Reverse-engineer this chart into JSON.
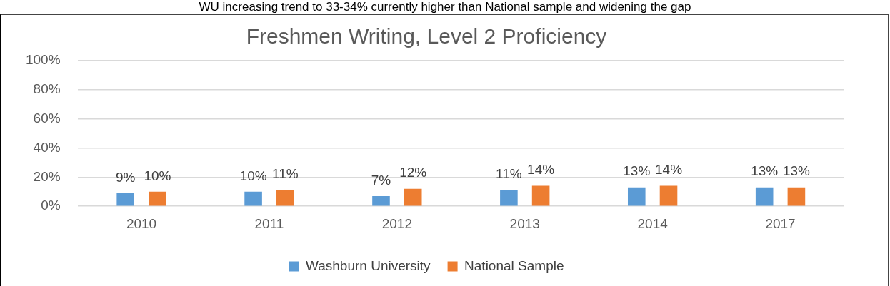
{
  "chart_data": {
    "type": "bar",
    "title": "Freshmen Writing, Level 2 Proficiency",
    "annotations": [
      "WU increasing trend to 33-34% currently higher than National sample and widening the gap"
    ],
    "categories": [
      "2010",
      "2011",
      "2012",
      "2013",
      "2014",
      "2017"
    ],
    "series": [
      {
        "name": "Washburn University",
        "color": "#5b9bd5",
        "values": [
          9,
          10,
          7,
          11,
          13,
          13
        ],
        "value_labels": [
          "9%",
          "10%",
          "7%",
          "11%",
          "13%",
          "13%"
        ]
      },
      {
        "name": "National Sample",
        "color": "#ed7d31",
        "values": [
          10,
          11,
          12,
          14,
          14,
          13
        ],
        "value_labels": [
          "10%",
          "11%",
          "12%",
          "14%",
          "14%",
          "13%"
        ]
      }
    ],
    "ylim": [
      0,
      100
    ],
    "yticks": [
      {
        "value": 0,
        "label": "0%"
      },
      {
        "value": 20,
        "label": "20%"
      },
      {
        "value": 40,
        "label": "40%"
      },
      {
        "value": 60,
        "label": "60%"
      },
      {
        "value": 80,
        "label": "80%"
      },
      {
        "value": 100,
        "label": "100%"
      }
    ],
    "grid": "y",
    "legend": "bottom"
  }
}
